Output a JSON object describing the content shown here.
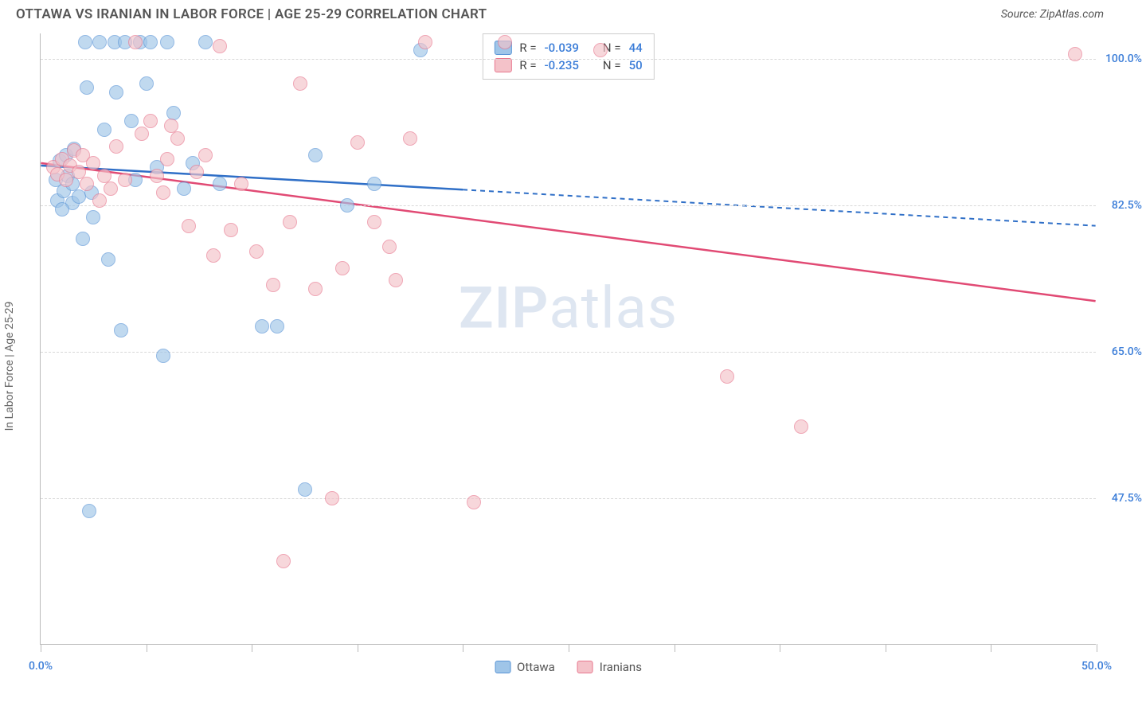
{
  "title": "OTTAWA VS IRANIAN IN LABOR FORCE | AGE 25-29 CORRELATION CHART",
  "source": "Source: ZipAtlas.com",
  "watermark_zip": "ZIP",
  "watermark_atlas": "atlas",
  "ylabel": "In Labor Force | Age 25-29",
  "chart": {
    "type": "scatter",
    "background_color": "#ffffff",
    "grid_color": "#d8d8d8",
    "axis_color": "#bbbbbb",
    "xlim": [
      0,
      50
    ],
    "ylim": [
      30,
      103
    ],
    "xticks": [
      0,
      5,
      10,
      15,
      20,
      25,
      30,
      35,
      40,
      45,
      50
    ],
    "xtick_labels": {
      "0": "0.0%",
      "50": "50.0%"
    },
    "xtick_label_color": "#3b7dd8",
    "yticks": [
      47.5,
      65.0,
      82.5,
      100.0
    ],
    "ytick_labels": [
      "47.5%",
      "65.0%",
      "82.5%",
      "100.0%"
    ],
    "ytick_label_color": "#3b7dd8",
    "point_radius": 9,
    "point_stroke_width": 1.5,
    "series": [
      {
        "name": "Ottawa",
        "fill_color": "#9fc5e8",
        "stroke_color": "#5a95d6",
        "opacity": 0.65,
        "trend_color": "#2f6fc7",
        "trend_width": 2.5,
        "trend_solid_xmax": 20,
        "trend_dash": "6,5",
        "R": "-0.039",
        "N": "44",
        "trend": {
          "x1": 0,
          "y1": 87.2,
          "x2": 50,
          "y2": 80.0
        },
        "points": [
          [
            0.7,
            85.5
          ],
          [
            0.8,
            83.0
          ],
          [
            0.9,
            87.8
          ],
          [
            1.1,
            84.2
          ],
          [
            1.2,
            88.5
          ],
          [
            1.3,
            86.0
          ],
          [
            1.5,
            82.8
          ],
          [
            1.5,
            85.0
          ],
          [
            1.6,
            89.2
          ],
          [
            1.8,
            83.5
          ],
          [
            2.0,
            78.5
          ],
          [
            2.1,
            102.0
          ],
          [
            2.2,
            96.5
          ],
          [
            2.4,
            84.0
          ],
          [
            2.5,
            81.0
          ],
          [
            2.8,
            102.0
          ],
          [
            3.0,
            91.5
          ],
          [
            3.2,
            76.0
          ],
          [
            3.5,
            102.0
          ],
          [
            3.6,
            96.0
          ],
          [
            3.8,
            67.5
          ],
          [
            4.0,
            102.0
          ],
          [
            4.3,
            92.5
          ],
          [
            4.5,
            85.5
          ],
          [
            4.7,
            102.0
          ],
          [
            5.0,
            97.0
          ],
          [
            5.2,
            102.0
          ],
          [
            5.5,
            87.0
          ],
          [
            5.8,
            64.5
          ],
          [
            6.0,
            102.0
          ],
          [
            6.3,
            93.5
          ],
          [
            6.8,
            84.5
          ],
          [
            7.2,
            87.5
          ],
          [
            7.8,
            102.0
          ],
          [
            8.5,
            85.0
          ],
          [
            10.5,
            68.0
          ],
          [
            11.2,
            68.0
          ],
          [
            12.5,
            48.5
          ],
          [
            13.0,
            88.5
          ],
          [
            14.5,
            82.5
          ],
          [
            15.8,
            85.0
          ],
          [
            18.0,
            101.0
          ],
          [
            2.3,
            46.0
          ],
          [
            1.0,
            82.0
          ]
        ]
      },
      {
        "name": "Iranians",
        "fill_color": "#f4c2c9",
        "stroke_color": "#e8788f",
        "opacity": 0.65,
        "trend_color": "#e14a74",
        "trend_width": 2.5,
        "trend_solid_xmax": 50,
        "R": "-0.235",
        "N": "50",
        "trend": {
          "x1": 0,
          "y1": 87.5,
          "x2": 50,
          "y2": 71.0
        },
        "points": [
          [
            0.6,
            87.0
          ],
          [
            0.8,
            86.2
          ],
          [
            1.0,
            88.0
          ],
          [
            1.2,
            85.5
          ],
          [
            1.4,
            87.2
          ],
          [
            1.6,
            89.0
          ],
          [
            1.8,
            86.5
          ],
          [
            2.0,
            88.5
          ],
          [
            2.2,
            85.0
          ],
          [
            2.5,
            87.5
          ],
          [
            2.8,
            83.0
          ],
          [
            3.0,
            86.0
          ],
          [
            3.3,
            84.5
          ],
          [
            3.6,
            89.5
          ],
          [
            4.0,
            85.5
          ],
          [
            4.5,
            102.0
          ],
          [
            4.8,
            91.0
          ],
          [
            5.2,
            92.5
          ],
          [
            5.5,
            86.0
          ],
          [
            5.8,
            84.0
          ],
          [
            6.2,
            92.0
          ],
          [
            6.5,
            90.5
          ],
          [
            7.0,
            80.0
          ],
          [
            7.4,
            86.5
          ],
          [
            7.8,
            88.5
          ],
          [
            8.2,
            76.5
          ],
          [
            8.5,
            101.5
          ],
          [
            9.0,
            79.5
          ],
          [
            9.5,
            85.0
          ],
          [
            10.2,
            77.0
          ],
          [
            11.0,
            73.0
          ],
          [
            11.8,
            80.5
          ],
          [
            12.3,
            97.0
          ],
          [
            13.0,
            72.5
          ],
          [
            13.8,
            47.5
          ],
          [
            14.3,
            75.0
          ],
          [
            15.0,
            90.0
          ],
          [
            15.8,
            80.5
          ],
          [
            16.5,
            77.5
          ],
          [
            16.8,
            73.5
          ],
          [
            17.5,
            90.5
          ],
          [
            18.2,
            102.0
          ],
          [
            20.5,
            47.0
          ],
          [
            22.0,
            102.0
          ],
          [
            26.5,
            101.0
          ],
          [
            32.5,
            62.0
          ],
          [
            36.0,
            56.0
          ],
          [
            49.0,
            100.5
          ],
          [
            11.5,
            40.0
          ],
          [
            6.0,
            88.0
          ]
        ]
      }
    ],
    "legend": {
      "position": "bottom",
      "items": [
        "Ottawa",
        "Iranians"
      ]
    },
    "stats_box": {
      "R_label": "R =",
      "N_label": "N =",
      "number_color": "#3b7dd8"
    }
  }
}
